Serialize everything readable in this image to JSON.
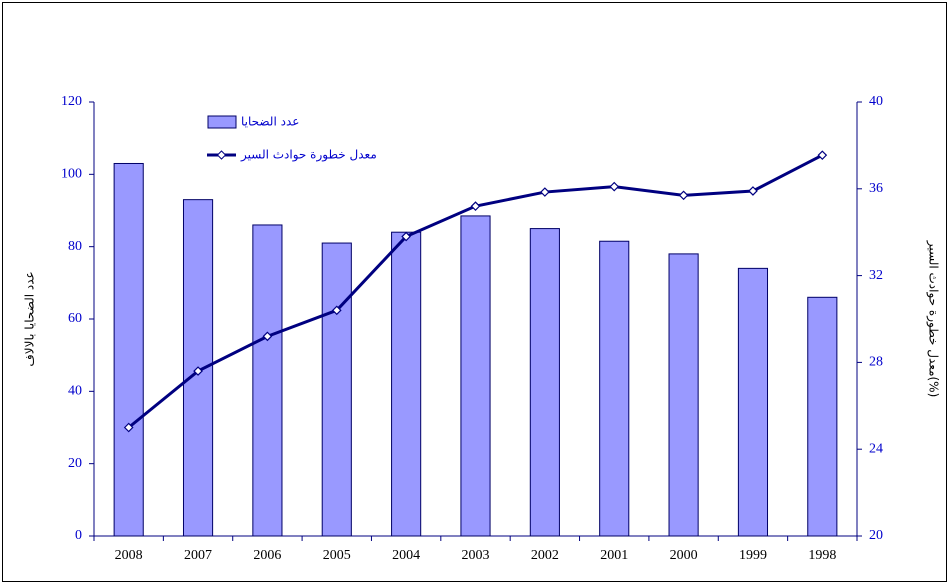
{
  "chart_data": {
    "type": "bar",
    "categories": [
      "2008",
      "2007",
      "2006",
      "2005",
      "2004",
      "2003",
      "2002",
      "2001",
      "2000",
      "1999",
      "1998"
    ],
    "series": [
      {
        "name": "عدد الضحايا",
        "type": "bar",
        "color": "#9999ff",
        "values": [
          103,
          93,
          86,
          81,
          84,
          88.5,
          85,
          81.5,
          78,
          74,
          66
        ]
      },
      {
        "name": "معدل خطورة حوادث السير",
        "type": "line",
        "axis": "y2",
        "color": "#000080",
        "values": [
          25,
          27.6,
          29.2,
          30.4,
          33.8,
          35.2,
          35.85,
          36.1,
          35.7,
          35.9,
          37.55
        ]
      }
    ],
    "ylabel": "عدد الضحايا بالالاف",
    "y2label": "معدل خطورة حوادث السير(%)",
    "ylim": [
      0,
      120
    ],
    "yticks": [
      0,
      20,
      40,
      60,
      80,
      100,
      120
    ],
    "y2lim": [
      20,
      40
    ],
    "y2ticks": [
      20,
      24,
      28,
      32,
      36,
      40
    ],
    "legend": "upper-left"
  }
}
